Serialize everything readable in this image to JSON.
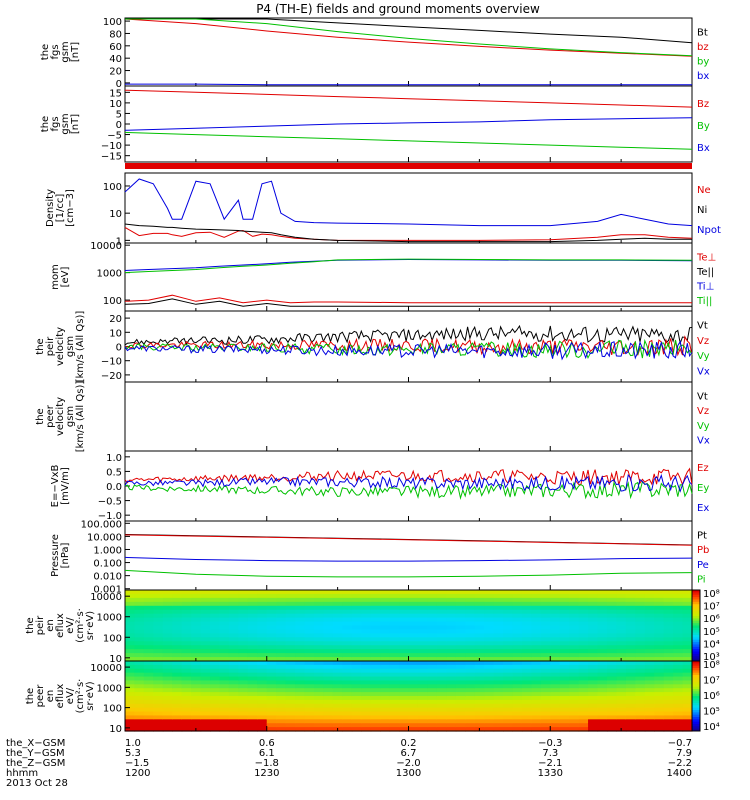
{
  "title": "P4 (TH-E) fields and ground moments overview",
  "colors": {
    "black": "#000000",
    "red": "#e00000",
    "green": "#00c000",
    "blue": "#0000e0"
  },
  "chart_data": [
    {
      "id": "fgs_gsm",
      "type": "line",
      "ylabel": [
        "the",
        "fgs",
        "gsm",
        "[nT]"
      ],
      "yticks": [
        100,
        80,
        60,
        40,
        20,
        0
      ],
      "ylim": [
        -5,
        105
      ],
      "x": [
        1200,
        1215,
        1230,
        1245,
        1300,
        1315,
        1330,
        1345,
        1400
      ],
      "series": [
        {
          "name": "Bt",
          "color": "black",
          "values": [
            120,
            112,
            104,
            97,
            91,
            85,
            79,
            74,
            65
          ]
        },
        {
          "name": "bz",
          "color": "red",
          "values": [
            110,
            96,
            84,
            74,
            66,
            59,
            53,
            48,
            43
          ]
        },
        {
          "name": "by",
          "color": "green",
          "values": [
            130,
            112,
            96,
            83,
            72,
            63,
            55,
            49,
            44
          ]
        },
        {
          "name": "bx",
          "color": "blue",
          "values": [
            -2,
            -2,
            -3,
            -3,
            -3,
            -3,
            -3,
            -3,
            -3
          ]
        }
      ]
    },
    {
      "id": "fgs_gsm_zoom",
      "type": "line",
      "ylabel": [
        "the",
        "fgs",
        "gsm",
        "[nT]"
      ],
      "yticks": [
        15,
        10,
        5,
        0,
        -5,
        -10,
        -15
      ],
      "yticklabels": [
        "15",
        "10",
        "5",
        "0",
        "−5",
        "−10",
        "−15"
      ],
      "ylim": [
        -18,
        18
      ],
      "x": [
        1200,
        1215,
        1230,
        1245,
        1300,
        1315,
        1330,
        1345,
        1400
      ],
      "series": [
        {
          "name": "Bz",
          "color": "red",
          "values": [
            16,
            15,
            14,
            13,
            12,
            11,
            10,
            9,
            8
          ]
        },
        {
          "name": "By",
          "color": "green",
          "values": [
            -4,
            -5,
            -6,
            -7,
            -8,
            -9,
            -10,
            -11,
            -12
          ]
        },
        {
          "name": "Bx",
          "color": "blue",
          "values": [
            -3,
            -2,
            -1,
            0,
            0.5,
            1,
            2,
            2.5,
            3
          ]
        }
      ]
    },
    {
      "id": "density",
      "type": "line",
      "yscale": "log",
      "ylabel": [
        "Density",
        "[1/cc]",
        "[cm−3]"
      ],
      "yticks": [
        100,
        10,
        1
      ],
      "ylim": [
        0.8,
        300
      ],
      "x": [
        1200,
        1203,
        1206,
        1209,
        1210,
        1212,
        1215,
        1218,
        1221,
        1224,
        1225,
        1227,
        1229,
        1231,
        1233,
        1236,
        1240,
        1245,
        1300,
        1315,
        1330,
        1340,
        1345,
        1350,
        1355,
        1400
      ],
      "series": [
        {
          "name": "Ne",
          "color": "red",
          "values": [
            3,
            1.5,
            1.8,
            1.8,
            1.6,
            1.4,
            1.9,
            2.0,
            1.3,
            2.2,
            2.3,
            1.4,
            1.7,
            1.6,
            1.4,
            1.2,
            1.1,
            1.0,
            1.0,
            1.0,
            1.05,
            1.3,
            1.6,
            1.6,
            1.3,
            1.2
          ]
        },
        {
          "name": "Ni",
          "color": "black",
          "values": [
            4,
            3.5,
            3.3,
            3,
            3,
            2.8,
            2.6,
            2.5,
            2.4,
            2.3,
            2.2,
            2.1,
            2.0,
            1.9,
            1.6,
            1.3,
            1.1,
            1.0,
            0.9,
            0.9,
            0.9,
            1.0,
            1.1,
            1.2,
            1.1,
            1.1
          ]
        },
        {
          "name": "Npot",
          "color": "blue",
          "values": [
            60,
            180,
            120,
            15,
            6,
            6,
            150,
            120,
            6,
            30,
            6,
            6,
            120,
            150,
            10,
            5,
            4.5,
            4.3,
            4,
            3.5,
            3.5,
            5,
            9,
            6,
            4,
            3.5
          ]
        }
      ]
    },
    {
      "id": "temperature",
      "type": "line",
      "yscale": "log",
      "ylabel": [
        "mom",
        "[eV]"
      ],
      "yticks": [
        10000,
        1000,
        100
      ],
      "ylim": [
        40,
        12000
      ],
      "x": [
        1200,
        1205,
        1210,
        1215,
        1220,
        1225,
        1230,
        1235,
        1240,
        1245,
        1300,
        1315,
        1330,
        1345,
        1400
      ],
      "series": [
        {
          "name": "Te⊥",
          "color": "red",
          "values": [
            90,
            100,
            150,
            90,
            120,
            80,
            100,
            80,
            85,
            85,
            80,
            80,
            80,
            80,
            80
          ]
        },
        {
          "name": "Te||",
          "color": "black",
          "values": [
            70,
            75,
            110,
            70,
            90,
            60,
            75,
            60,
            60,
            60,
            60,
            60,
            60,
            60,
            60
          ]
        },
        {
          "name": "Ti⊥",
          "color": "blue",
          "values": [
            1200,
            1300,
            1400,
            1500,
            1700,
            1900,
            2100,
            2400,
            2600,
            2800,
            3000,
            2900,
            2800,
            2800,
            2700
          ]
        },
        {
          "name": "Ti||",
          "color": "green",
          "values": [
            1000,
            1100,
            1200,
            1300,
            1500,
            1700,
            1900,
            2200,
            2500,
            2900,
            3100,
            3000,
            2900,
            2900,
            2800
          ]
        }
      ]
    },
    {
      "id": "peir_velocity",
      "type": "line",
      "ylabel": [
        "the",
        "peir",
        "velocity",
        "gsm",
        "[km/s (All Qs)]"
      ],
      "yticks": [
        20,
        10,
        0,
        -10,
        -20
      ],
      "yticklabels": [
        "20",
        "10",
        "0",
        "−10",
        "−20"
      ],
      "ylim": [
        -25,
        25
      ],
      "x": [
        1200,
        1215,
        1230,
        1245,
        1300,
        1315,
        1330,
        1345,
        1400
      ],
      "series": [
        {
          "name": "Vt",
          "color": "black",
          "values": [
            3,
            4,
            5,
            7,
            8,
            9,
            9,
            8,
            8
          ]
        },
        {
          "name": "Vz",
          "color": "red",
          "values": [
            1,
            1,
            1,
            1,
            1,
            0,
            0,
            0,
            0
          ]
        },
        {
          "name": "Vy",
          "color": "green",
          "values": [
            0,
            -1,
            -1,
            -2,
            -2,
            -2,
            -2,
            -2,
            -2
          ]
        },
        {
          "name": "Vx",
          "color": "blue",
          "values": [
            -1,
            -2,
            -2,
            -3,
            -3,
            -3,
            -3,
            -3,
            -3
          ]
        }
      ]
    },
    {
      "id": "peer_velocity",
      "type": "line",
      "ylabel": [
        "the",
        "peer",
        "velocity",
        "gsm",
        "[km/s (All Qs)]"
      ],
      "yticks": [],
      "ylim": [
        -25,
        25
      ],
      "x": [],
      "series": [
        {
          "name": "Vt",
          "color": "black",
          "values": []
        },
        {
          "name": "Vz",
          "color": "red",
          "values": []
        },
        {
          "name": "Vy",
          "color": "green",
          "values": []
        },
        {
          "name": "Vx",
          "color": "blue",
          "values": []
        }
      ]
    },
    {
      "id": "efield",
      "type": "line",
      "ylabel": [
        "E=−VxB",
        "[mV/m]"
      ],
      "yticks": [
        1.0,
        0.5,
        0.0,
        -0.5,
        -1.0
      ],
      "yticklabels": [
        "1.0",
        "0.5",
        "0.0",
        "−0.5",
        "−1.0"
      ],
      "ylim": [
        -1.2,
        1.2
      ],
      "x": [
        1200,
        1215,
        1230,
        1245,
        1300,
        1315,
        1330,
        1345,
        1400
      ],
      "series": [
        {
          "name": "Ez",
          "color": "red",
          "values": [
            0.2,
            0.25,
            0.3,
            0.35,
            0.35,
            0.35,
            0.3,
            0.3,
            0.3
          ]
        },
        {
          "name": "Ey",
          "color": "green",
          "values": [
            -0.05,
            -0.1,
            -0.15,
            -0.2,
            -0.2,
            -0.2,
            -0.15,
            -0.15,
            -0.1
          ]
        },
        {
          "name": "Ex",
          "color": "blue",
          "values": [
            0.1,
            0.1,
            0.15,
            0.15,
            0.1,
            0.1,
            0.1,
            0.1,
            0.1
          ]
        }
      ]
    },
    {
      "id": "pressure",
      "type": "line",
      "yscale": "log",
      "ylabel": [
        "Pressure",
        "[nPa]"
      ],
      "yticks": [
        100,
        10,
        1,
        0.1,
        0.01,
        0.001
      ],
      "yticklabels": [
        "100.000",
        "10.000",
        "1.000",
        "0.100",
        "0.010",
        "0.001"
      ],
      "ylim": [
        0.0008,
        150
      ],
      "x": [
        1200,
        1215,
        1230,
        1245,
        1300,
        1315,
        1330,
        1345,
        1400
      ],
      "series": [
        {
          "name": "Pt",
          "color": "black",
          "values": [
            14,
            11,
            9,
            7.2,
            5.8,
            4.6,
            3.6,
            2.8,
            2.2
          ]
        },
        {
          "name": "Pb",
          "color": "red",
          "values": [
            13,
            10.5,
            8.5,
            6.9,
            5.5,
            4.4,
            3.4,
            2.7,
            2.1
          ]
        },
        {
          "name": "Pe",
          "color": "blue",
          "values": [
            0.25,
            0.17,
            0.14,
            0.13,
            0.13,
            0.14,
            0.16,
            0.2,
            0.22
          ]
        },
        {
          "name": "Pi",
          "color": "green",
          "values": [
            0.025,
            0.013,
            0.009,
            0.008,
            0.008,
            0.009,
            0.011,
            0.015,
            0.017
          ]
        }
      ]
    },
    {
      "id": "peir_eflux",
      "type": "heatmap",
      "ylabel": [
        "the",
        "peir",
        "en",
        "eflux",
        "eV/",
        "(cm²·s·",
        "sr·eV)"
      ],
      "yticks": [
        10000,
        1000,
        100,
        10
      ],
      "colorbar_ticks": [
        "10⁸",
        "10⁷",
        "10⁶",
        "10⁵",
        "10⁴",
        "10³"
      ],
      "colorbar_range": [
        3,
        8
      ]
    },
    {
      "id": "peer_eflux",
      "type": "heatmap",
      "ylabel": [
        "the",
        "peer",
        "en",
        "eflux",
        "eV/",
        "(cm²·s·",
        "sr·eV)"
      ],
      "yticks": [
        10000,
        1000,
        100,
        10
      ],
      "colorbar_ticks": [
        "10⁸",
        "10⁷",
        "10⁶",
        "10⁵",
        "10⁴"
      ],
      "colorbar_range": [
        4,
        8
      ]
    }
  ],
  "ephemeris": {
    "labels": [
      "the_X−GSM",
      "the_Y−GSM",
      "the_Z−GSM",
      "hhmm",
      "2013 Oct 28"
    ],
    "columns": [
      [
        "1.0",
        "5.3",
        "−1.5",
        "1200"
      ],
      [
        "0.6",
        "6.1",
        "−1.8",
        "1230"
      ],
      [
        "0.2",
        "6.7",
        "−2.0",
        "1300"
      ],
      [
        "−0.3",
        "7.3",
        "−2.1",
        "1330"
      ],
      [
        "−0.7",
        "7.9",
        "−2.2",
        "1400"
      ]
    ]
  }
}
